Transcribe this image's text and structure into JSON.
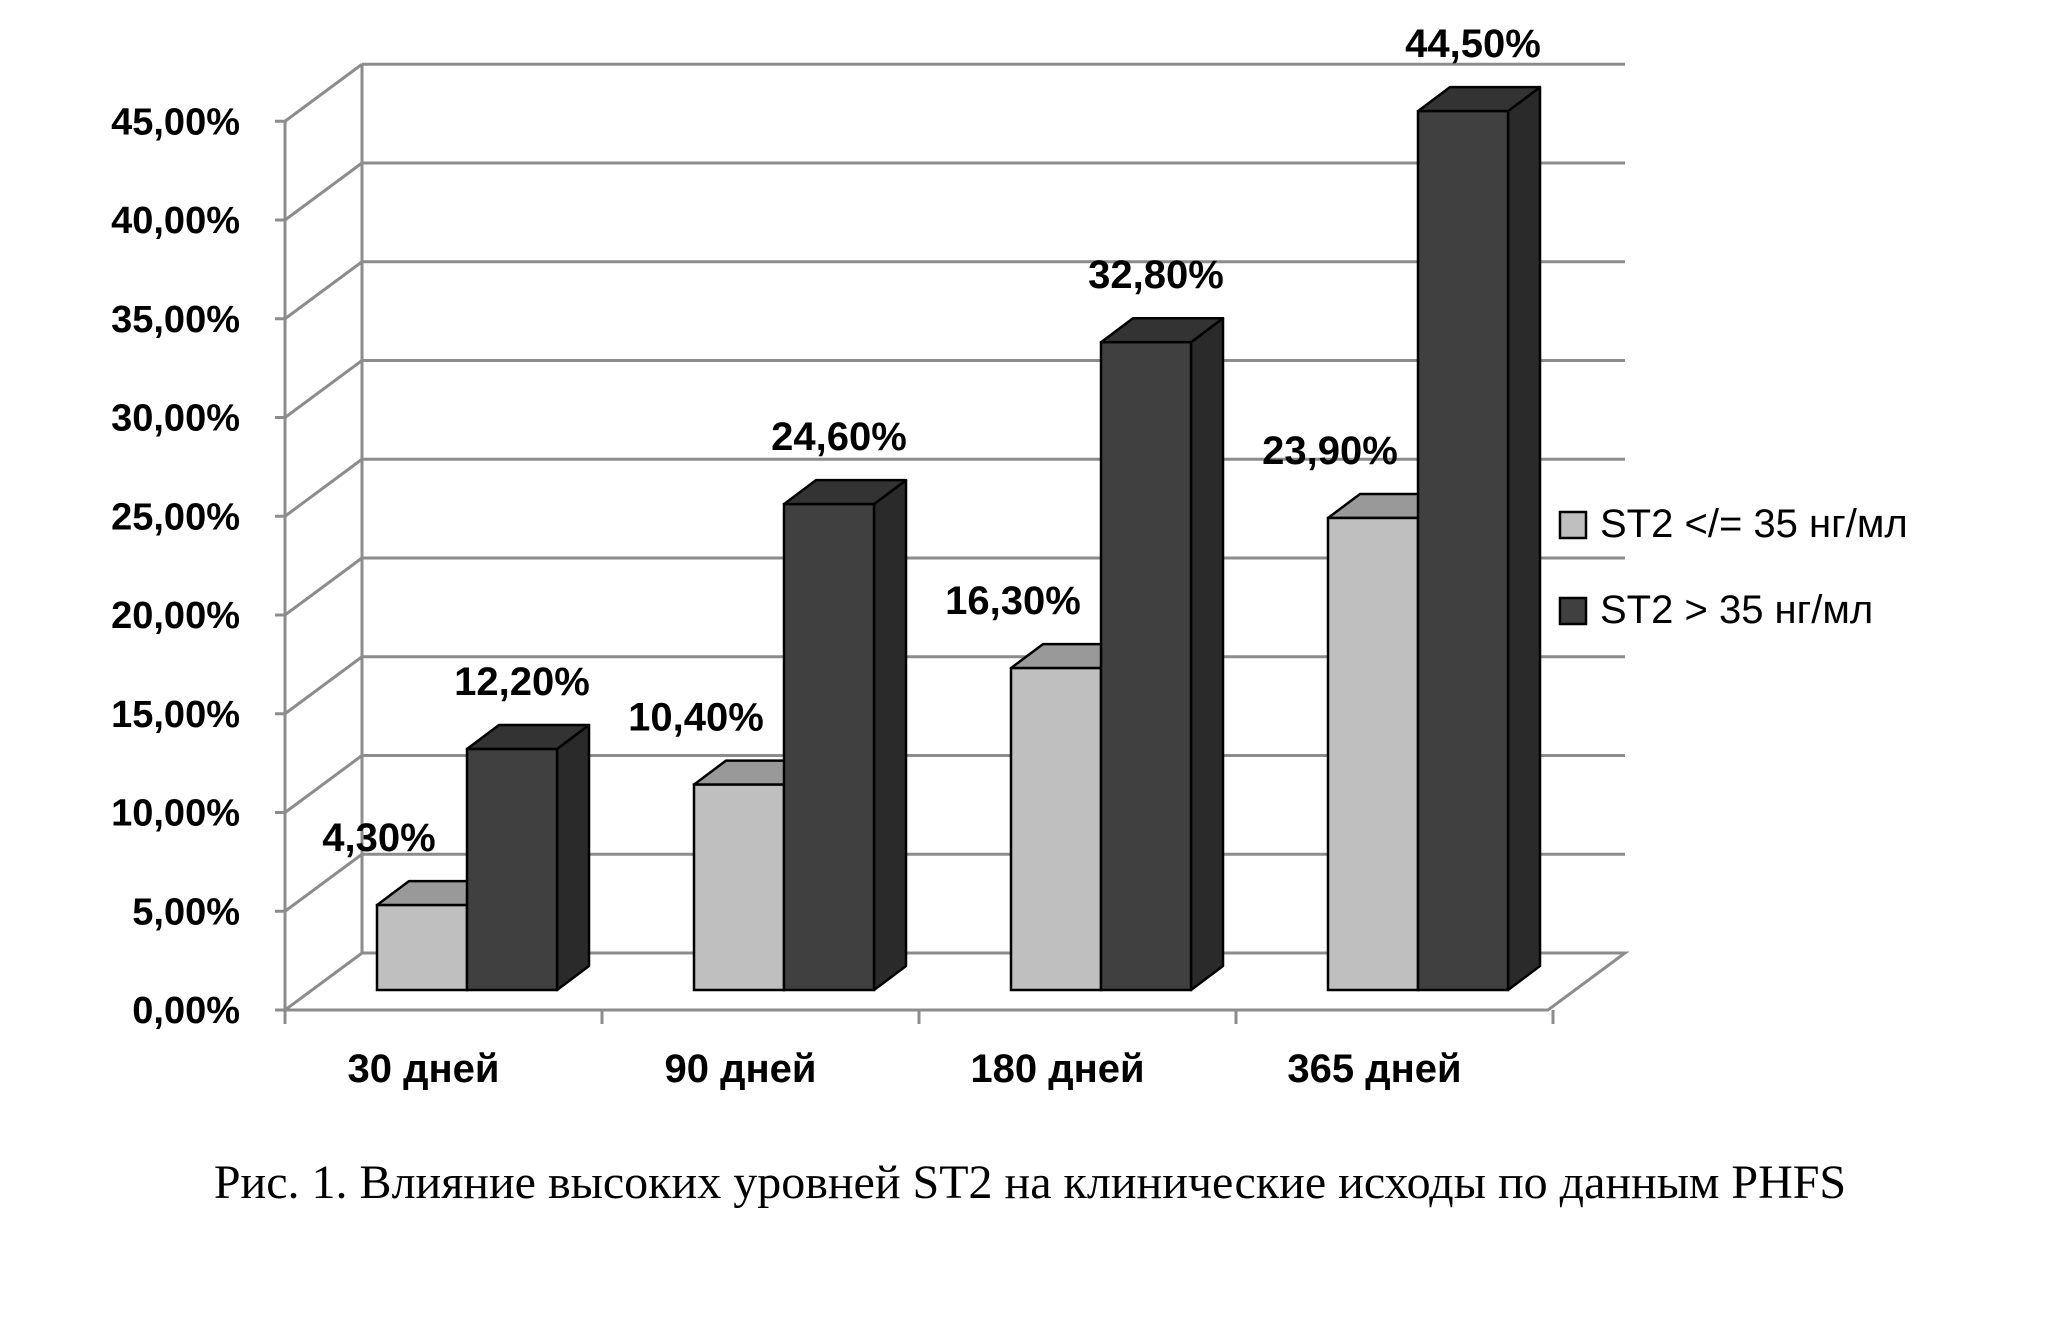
{
  "caption": "Рис. 1. Влияние высоких уровней ST2 на клинические исходы по данным PHFS",
  "chart_data": {
    "type": "bar",
    "style": "3d-clustered-column",
    "title": "",
    "xlabel": "",
    "ylabel": "",
    "categories": [
      "30 дней",
      "90 дней",
      "180 дней",
      "365 дней"
    ],
    "series": [
      {
        "name": "ST2 </= 35 нг/мл",
        "values": [
          4.3,
          10.4,
          16.3,
          23.9
        ],
        "labels": [
          "4,30%",
          "10,40%",
          "16,30%",
          "23,90%"
        ],
        "color": "#bfbfbf"
      },
      {
        "name": "ST2 > 35 нг/мл",
        "values": [
          12.2,
          24.6,
          32.8,
          44.5
        ],
        "labels": [
          "12,20%",
          "24,60%",
          "32,80%",
          "44,50%"
        ],
        "color": "#404040"
      }
    ],
    "ylim": [
      0,
      45
    ],
    "yticks": [
      "0,00%",
      "5,00%",
      "10,00%",
      "15,00%",
      "20,00%",
      "25,00%",
      "30,00%",
      "35,00%",
      "40,00%",
      "45,00%"
    ],
    "grid": true,
    "legend": "right"
  }
}
